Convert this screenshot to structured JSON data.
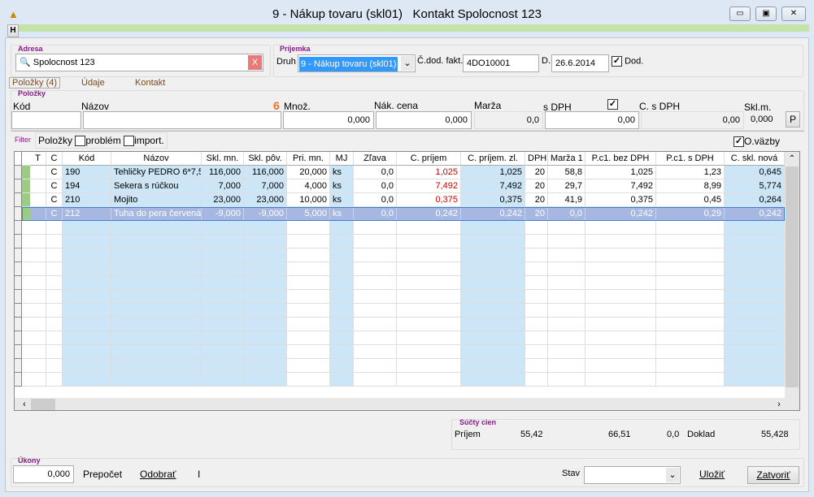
{
  "window": {
    "title": "9 - Nákup tovaru (skl01)   Kontakt Spolocnost 123",
    "h_button": "H",
    "min": "▭",
    "max": "▣",
    "close": "✕"
  },
  "adresa": {
    "label": "Adresa",
    "value": "Spolocnost 123",
    "clear": "X"
  },
  "prijemka": {
    "label": "Príjemka",
    "druh_label": "Druh",
    "druh_value": "9 - Nákup tovaru (skl01)",
    "cdod_label": "Č.dod. fakt.",
    "cdod_value": "4DO10001",
    "d_label": "D.",
    "d_value": "26.6.2014",
    "dod_label": "Dod.",
    "dod_checked": true
  },
  "tabs": [
    {
      "label": "Položky (4)",
      "active": true
    },
    {
      "label": "Údaje"
    },
    {
      "label": "Kontakt"
    }
  ],
  "polozky": {
    "label": "Položky",
    "kod": "Kód",
    "nazov": "Názov",
    "num6": "6",
    "mnoz": "Množ.",
    "mnoz_value": "0,000",
    "nak_cena": "Nák. cena",
    "nak_value": "0,000",
    "marza": "Marža",
    "marza_value": "0,0",
    "sdph": "s DPH",
    "sdph_value": "0,00",
    "sdph_checked": true,
    "csdph": "C. s DPH",
    "csdph_value": "0,00",
    "sklm": "Skl.m.",
    "sklm_value": "0,000",
    "p_button": "P"
  },
  "filter": {
    "label": "Filter",
    "polozky": "Položky",
    "problem": "problém",
    "import": "import.",
    "ovazby": "O.väzby",
    "ovazby_checked": true
  },
  "table": {
    "columns": [
      "T",
      "C",
      "Kód",
      "Názov",
      "Skl. mn.",
      "Skl. pôv.",
      "Pri. mn.",
      "MJ",
      "Zľava",
      "C. príjem",
      "C. príjem. zl.",
      "DPH",
      "Marža 1",
      "P.c1. bez DPH",
      "P.c1. s DPH",
      "C. skl. nová"
    ],
    "rows": [
      [
        "",
        "C",
        "190",
        "Tehličky PEDRO   6*7,5",
        "116,000",
        "116,000",
        "20,000",
        "ks",
        "0,0",
        "1,025",
        "1,025",
        "20",
        "58,8",
        "1,025",
        "1,23",
        "0,645"
      ],
      [
        "",
        "C",
        "194",
        "Sekera s rúčkou",
        "7,000",
        "7,000",
        "4,000",
        "ks",
        "0,0",
        "7,492",
        "7,492",
        "20",
        "29,7",
        "7,492",
        "8,99",
        "5,774"
      ],
      [
        "",
        "C",
        "210",
        "Mojito",
        "23,000",
        "23,000",
        "10,000",
        "ks",
        "0,0",
        "0,375",
        "0,375",
        "20",
        "41,9",
        "0,375",
        "0,45",
        "0,264"
      ],
      [
        "",
        "C",
        "212",
        "Tuha do pera červená",
        "-9,000",
        "-9,000",
        "5,000",
        "ks",
        "0,0",
        "0,242",
        "0,242",
        "20",
        "0,0",
        "0,242",
        "0,29",
        "0,242"
      ]
    ],
    "selected_row": 3,
    "red_column": 9
  },
  "sucty": {
    "label": "Súčty cien",
    "prijem": "Príjem",
    "v1": "55,42",
    "v2": "66,51",
    "v3": "0,0",
    "doklad": "Doklad",
    "v4": "55,428"
  },
  "ukony": {
    "label": "Úkony",
    "value": "0,000",
    "prepocet": "Prepočet",
    "odobrat": "Odobrať",
    "i": "I",
    "stav": "Stav",
    "stav_value": "",
    "ulozit": "Uložiť",
    "zatvorit": "Zatvoriť"
  },
  "colors": {
    "accent_green": "#c3e3a8",
    "light_blue": "#cce6f7",
    "selected": "#a6b7e2",
    "label_purple": "#8b1a8b",
    "red": "#d00000"
  }
}
